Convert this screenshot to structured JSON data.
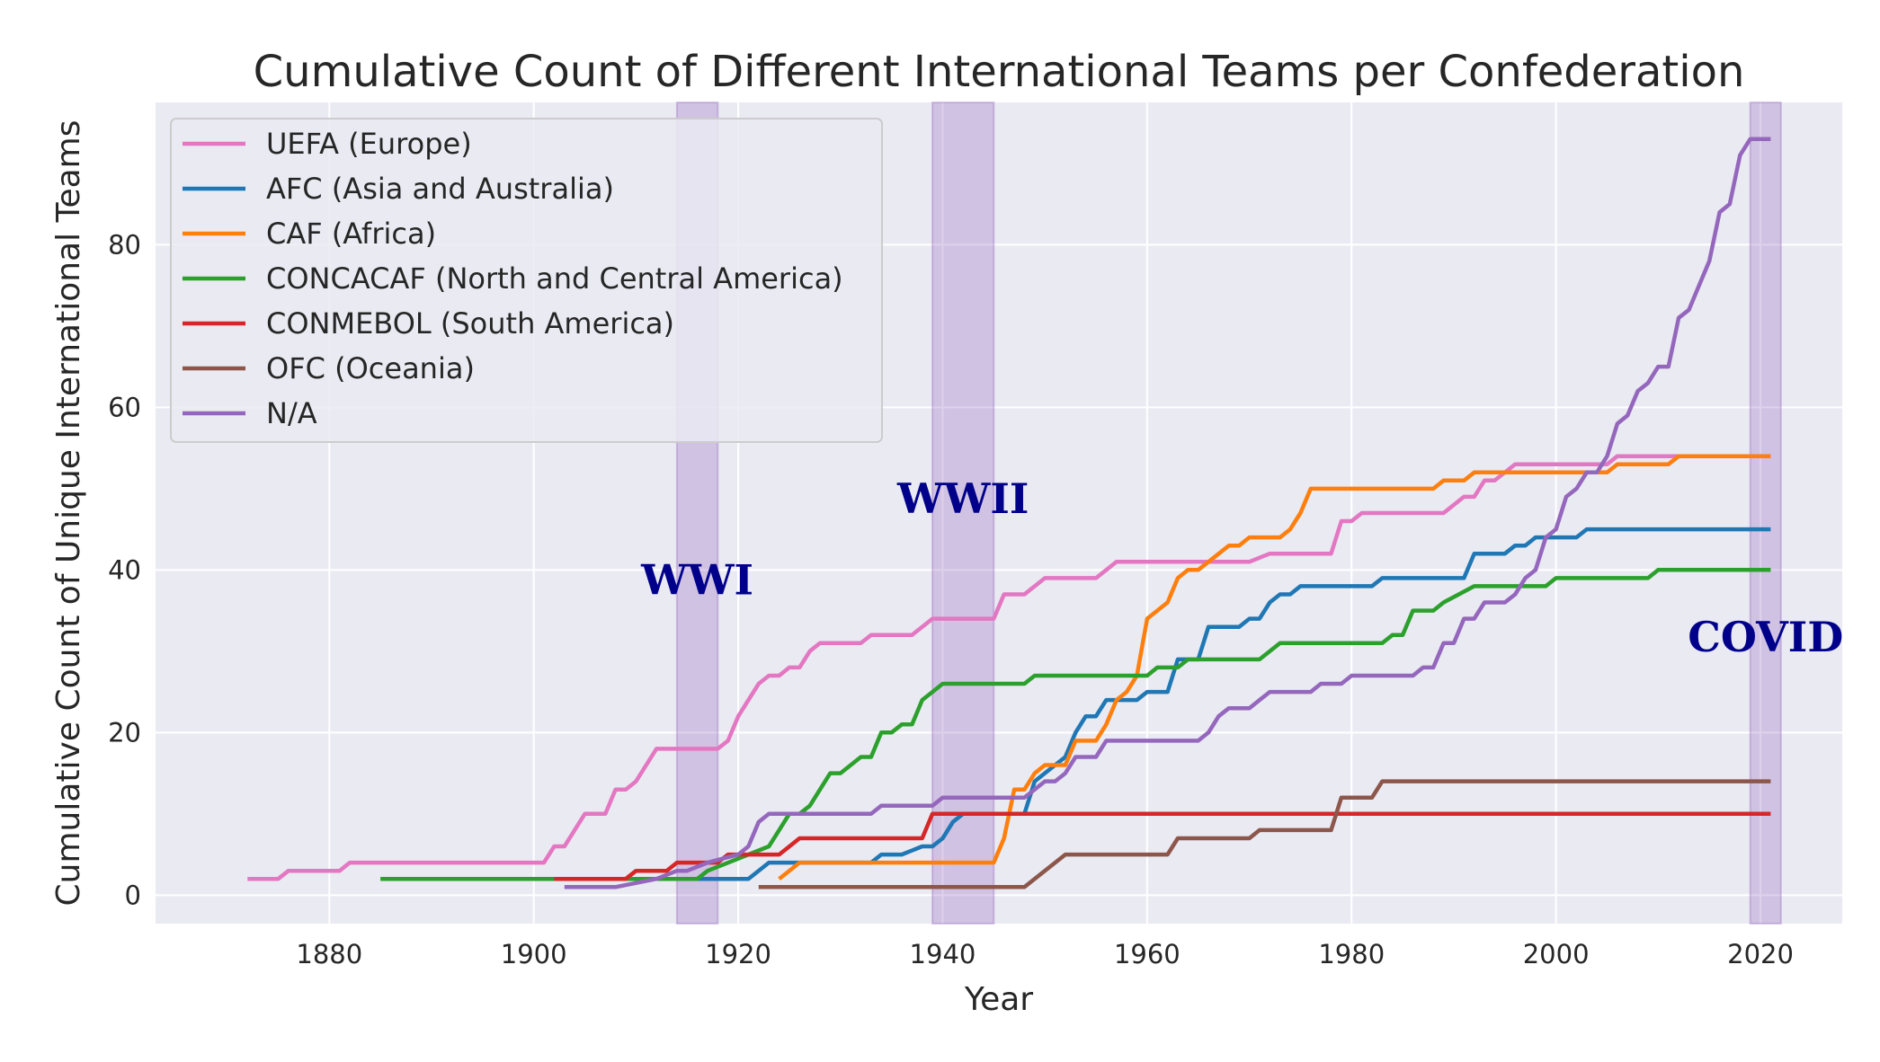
{
  "chart_data": {
    "type": "line",
    "title": "Cumulative Count of Different International Teams per Confederation",
    "xlabel": "Year",
    "ylabel": "Cumulative Count of Unique International Teams",
    "xlim": [
      1863,
      2028
    ],
    "ylim": [
      -3.5,
      97.5
    ],
    "xticks": [
      1880,
      1900,
      1920,
      1940,
      1960,
      1980,
      2000,
      2020
    ],
    "yticks": [
      0,
      20,
      40,
      60,
      80
    ],
    "grid": true,
    "legend_position": "top-left",
    "shaded_periods": [
      {
        "label": "WWI",
        "start": 1914,
        "end": 1918,
        "label_x": 1916,
        "label_y": 37
      },
      {
        "label": "WWII",
        "start": 1939,
        "end": 1945,
        "label_x": 1942,
        "label_y": 47
      },
      {
        "label": "COVID",
        "start": 2019,
        "end": 2022,
        "label_x": 2020.5,
        "label_y": 30
      }
    ],
    "series": [
      {
        "name": "UEFA (Europe)",
        "color": "#e377c2",
        "points": [
          [
            1872,
            2
          ],
          [
            1875,
            2
          ],
          [
            1876,
            3
          ],
          [
            1881,
            3
          ],
          [
            1882,
            4
          ],
          [
            1901,
            4
          ],
          [
            1902,
            6
          ],
          [
            1903,
            6
          ],
          [
            1905,
            10
          ],
          [
            1907,
            10
          ],
          [
            1908,
            13
          ],
          [
            1909,
            13
          ],
          [
            1910,
            14
          ],
          [
            1912,
            18
          ],
          [
            1918,
            18
          ],
          [
            1919,
            19
          ],
          [
            1920,
            22
          ],
          [
            1922,
            26
          ],
          [
            1923,
            27
          ],
          [
            1924,
            27
          ],
          [
            1925,
            28
          ],
          [
            1926,
            28
          ],
          [
            1927,
            30
          ],
          [
            1928,
            31
          ],
          [
            1932,
            31
          ],
          [
            1933,
            32
          ],
          [
            1937,
            32
          ],
          [
            1938,
            33
          ],
          [
            1939,
            34
          ],
          [
            1945,
            34
          ],
          [
            1946,
            37
          ],
          [
            1948,
            37
          ],
          [
            1950,
            39
          ],
          [
            1955,
            39
          ],
          [
            1957,
            41
          ],
          [
            1970,
            41
          ],
          [
            1972,
            42
          ],
          [
            1978,
            42
          ],
          [
            1979,
            46
          ],
          [
            1980,
            46
          ],
          [
            1981,
            47
          ],
          [
            1989,
            47
          ],
          [
            1991,
            49
          ],
          [
            1992,
            49
          ],
          [
            1993,
            51
          ],
          [
            1994,
            51
          ],
          [
            1996,
            53
          ],
          [
            2005,
            53
          ],
          [
            2006,
            54
          ],
          [
            2021,
            54
          ]
        ]
      },
      {
        "name": "AFC (Asia and Australia)",
        "color": "#1f77b4",
        "points": [
          [
            1916,
            2
          ],
          [
            1921,
            2
          ],
          [
            1923,
            4
          ],
          [
            1925,
            4
          ],
          [
            1933,
            4
          ],
          [
            1934,
            5
          ],
          [
            1936,
            5
          ],
          [
            1938,
            6
          ],
          [
            1939,
            6
          ],
          [
            1940,
            7
          ],
          [
            1941,
            9
          ],
          [
            1942,
            10
          ],
          [
            1947,
            10
          ],
          [
            1948,
            10
          ],
          [
            1949,
            14
          ],
          [
            1951,
            16
          ],
          [
            1952,
            17
          ],
          [
            1953,
            20
          ],
          [
            1954,
            22
          ],
          [
            1955,
            22
          ],
          [
            1956,
            24
          ],
          [
            1959,
            24
          ],
          [
            1960,
            25
          ],
          [
            1962,
            25
          ],
          [
            1963,
            29
          ],
          [
            1965,
            29
          ],
          [
            1966,
            33
          ],
          [
            1969,
            33
          ],
          [
            1970,
            34
          ],
          [
            1971,
            34
          ],
          [
            1972,
            36
          ],
          [
            1973,
            37
          ],
          [
            1974,
            37
          ],
          [
            1975,
            38
          ],
          [
            1982,
            38
          ],
          [
            1983,
            39
          ],
          [
            1991,
            39
          ],
          [
            1992,
            42
          ],
          [
            1995,
            42
          ],
          [
            1996,
            43
          ],
          [
            1997,
            43
          ],
          [
            1998,
            44
          ],
          [
            2002,
            44
          ],
          [
            2003,
            45
          ],
          [
            2021,
            45
          ]
        ]
      },
      {
        "name": "CAF (Africa)",
        "color": "#ff7f0e",
        "points": [
          [
            1924,
            2
          ],
          [
            1926,
            4
          ],
          [
            1945,
            4
          ],
          [
            1946,
            7
          ],
          [
            1947,
            13
          ],
          [
            1948,
            13
          ],
          [
            1949,
            15
          ],
          [
            1950,
            16
          ],
          [
            1952,
            16
          ],
          [
            1953,
            19
          ],
          [
            1955,
            19
          ],
          [
            1956,
            21
          ],
          [
            1957,
            24
          ],
          [
            1958,
            25
          ],
          [
            1959,
            27
          ],
          [
            1960,
            34
          ],
          [
            1961,
            35
          ],
          [
            1962,
            36
          ],
          [
            1963,
            39
          ],
          [
            1964,
            40
          ],
          [
            1965,
            40
          ],
          [
            1966,
            41
          ],
          [
            1968,
            43
          ],
          [
            1969,
            43
          ],
          [
            1970,
            44
          ],
          [
            1973,
            44
          ],
          [
            1974,
            45
          ],
          [
            1975,
            47
          ],
          [
            1976,
            50
          ],
          [
            1988,
            50
          ],
          [
            1989,
            51
          ],
          [
            1991,
            51
          ],
          [
            1992,
            52
          ],
          [
            2005,
            52
          ],
          [
            2006,
            53
          ],
          [
            2011,
            53
          ],
          [
            2012,
            54
          ],
          [
            2021,
            54
          ]
        ]
      },
      {
        "name": "CONCACAF (North and Central America)",
        "color": "#2ca02c",
        "points": [
          [
            1885,
            2
          ],
          [
            1916,
            2
          ],
          [
            1917,
            3
          ],
          [
            1921,
            5
          ],
          [
            1923,
            6
          ],
          [
            1924,
            8
          ],
          [
            1925,
            10
          ],
          [
            1926,
            10
          ],
          [
            1927,
            11
          ],
          [
            1929,
            15
          ],
          [
            1930,
            15
          ],
          [
            1932,
            17
          ],
          [
            1933,
            17
          ],
          [
            1934,
            20
          ],
          [
            1935,
            20
          ],
          [
            1936,
            21
          ],
          [
            1937,
            21
          ],
          [
            1938,
            24
          ],
          [
            1939,
            25
          ],
          [
            1940,
            26
          ],
          [
            1948,
            26
          ],
          [
            1949,
            27
          ],
          [
            1960,
            27
          ],
          [
            1961,
            28
          ],
          [
            1963,
            28
          ],
          [
            1964,
            29
          ],
          [
            1971,
            29
          ],
          [
            1973,
            31
          ],
          [
            1983,
            31
          ],
          [
            1984,
            32
          ],
          [
            1985,
            32
          ],
          [
            1986,
            35
          ],
          [
            1988,
            35
          ],
          [
            1989,
            36
          ],
          [
            1992,
            38
          ],
          [
            1999,
            38
          ],
          [
            2000,
            39
          ],
          [
            2009,
            39
          ],
          [
            2010,
            40
          ],
          [
            2021,
            40
          ]
        ]
      },
      {
        "name": "CONMEBOL (South America)",
        "color": "#d62728",
        "points": [
          [
            1902,
            2
          ],
          [
            1909,
            2
          ],
          [
            1910,
            3
          ],
          [
            1913,
            3
          ],
          [
            1914,
            4
          ],
          [
            1918,
            4
          ],
          [
            1919,
            5
          ],
          [
            1924,
            5
          ],
          [
            1926,
            7
          ],
          [
            1938,
            7
          ],
          [
            1939,
            10
          ],
          [
            2021,
            10
          ]
        ]
      },
      {
        "name": "OFC (Oceania)",
        "color": "#8c564b",
        "points": [
          [
            1922,
            1
          ],
          [
            1948,
            1
          ],
          [
            1952,
            5
          ],
          [
            1962,
            5
          ],
          [
            1963,
            7
          ],
          [
            1970,
            7
          ],
          [
            1971,
            8
          ],
          [
            1978,
            8
          ],
          [
            1979,
            12
          ],
          [
            1982,
            12
          ],
          [
            1983,
            14
          ],
          [
            2021,
            14
          ]
        ]
      },
      {
        "name": "N/A",
        "color": "#9467bd",
        "points": [
          [
            1903,
            1
          ],
          [
            1908,
            1
          ],
          [
            1912,
            2
          ],
          [
            1914,
            3
          ],
          [
            1915,
            3
          ],
          [
            1917,
            4
          ],
          [
            1920,
            5
          ],
          [
            1921,
            6
          ],
          [
            1922,
            9
          ],
          [
            1923,
            10
          ],
          [
            1933,
            10
          ],
          [
            1934,
            11
          ],
          [
            1939,
            11
          ],
          [
            1940,
            12
          ],
          [
            1948,
            12
          ],
          [
            1949,
            13
          ],
          [
            1950,
            14
          ],
          [
            1951,
            14
          ],
          [
            1952,
            15
          ],
          [
            1953,
            17
          ],
          [
            1955,
            17
          ],
          [
            1956,
            19
          ],
          [
            1965,
            19
          ],
          [
            1966,
            20
          ],
          [
            1967,
            22
          ],
          [
            1968,
            23
          ],
          [
            1970,
            23
          ],
          [
            1972,
            25
          ],
          [
            1976,
            25
          ],
          [
            1977,
            26
          ],
          [
            1979,
            26
          ],
          [
            1980,
            27
          ],
          [
            1986,
            27
          ],
          [
            1987,
            28
          ],
          [
            1988,
            28
          ],
          [
            1989,
            31
          ],
          [
            1990,
            31
          ],
          [
            1991,
            34
          ],
          [
            1992,
            34
          ],
          [
            1993,
            36
          ],
          [
            1995,
            36
          ],
          [
            1996,
            37
          ],
          [
            1997,
            39
          ],
          [
            1998,
            40
          ],
          [
            1999,
            44
          ],
          [
            2000,
            45
          ],
          [
            2001,
            49
          ],
          [
            2002,
            50
          ],
          [
            2003,
            52
          ],
          [
            2004,
            52
          ],
          [
            2005,
            54
          ],
          [
            2006,
            58
          ],
          [
            2007,
            59
          ],
          [
            2008,
            62
          ],
          [
            2009,
            63
          ],
          [
            2010,
            65
          ],
          [
            2011,
            65
          ],
          [
            2012,
            71
          ],
          [
            2013,
            72
          ],
          [
            2014,
            75
          ],
          [
            2015,
            78
          ],
          [
            2016,
            84
          ],
          [
            2017,
            85
          ],
          [
            2018,
            91
          ],
          [
            2019,
            93
          ],
          [
            2021,
            93
          ]
        ]
      }
    ]
  }
}
